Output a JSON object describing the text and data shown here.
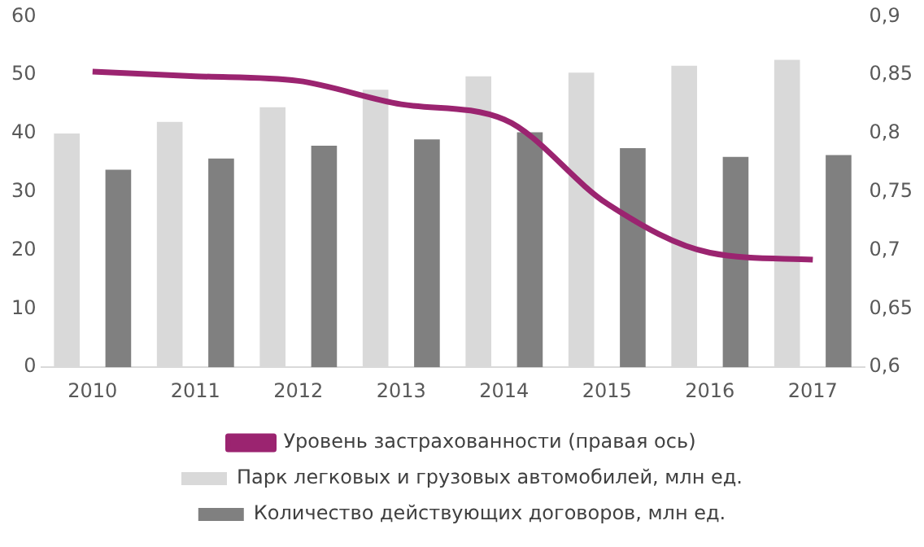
{
  "chart_data": {
    "type": "bar",
    "categories": [
      "2010",
      "2011",
      "2012",
      "2013",
      "2014",
      "2015",
      "2016",
      "2017"
    ],
    "series": [
      {
        "name": "Парк легковых и грузовых автомобилей, млн ед.",
        "color": "#d9d9d9",
        "values": [
          40,
          42,
          44.5,
          47.5,
          49.8,
          50.4,
          51.6,
          52.6
        ]
      },
      {
        "name": "Количество действующих договоров, млн ед.",
        "color": "#808080",
        "values": [
          33.8,
          35.7,
          37.9,
          39,
          40.2,
          37.5,
          36,
          36.3
        ]
      },
      {
        "name": "Уровень застрахованности (правая ось)",
        "type": "line",
        "axis": "y2",
        "color": "#9b2470",
        "values": [
          0.853,
          0.849,
          0.845,
          0.825,
          0.812,
          0.74,
          0.698,
          0.692
        ]
      }
    ],
    "ylim": [
      0,
      60
    ],
    "yticks": [
      0,
      10,
      20,
      30,
      40,
      50,
      60
    ],
    "y2lim": [
      0.6,
      0.9
    ],
    "y2ticks": [
      {
        "value": 0.6,
        "label": "0,6"
      },
      {
        "value": 0.65,
        "label": "0,65"
      },
      {
        "value": 0.7,
        "label": "0,7"
      },
      {
        "value": 0.75,
        "label": "0,75"
      },
      {
        "value": 0.8,
        "label": "0,8"
      },
      {
        "value": 0.85,
        "label": "0,85"
      },
      {
        "value": 0.9,
        "label": "0,9"
      }
    ],
    "grid": false,
    "legend": "bottom",
    "marker": "none"
  }
}
